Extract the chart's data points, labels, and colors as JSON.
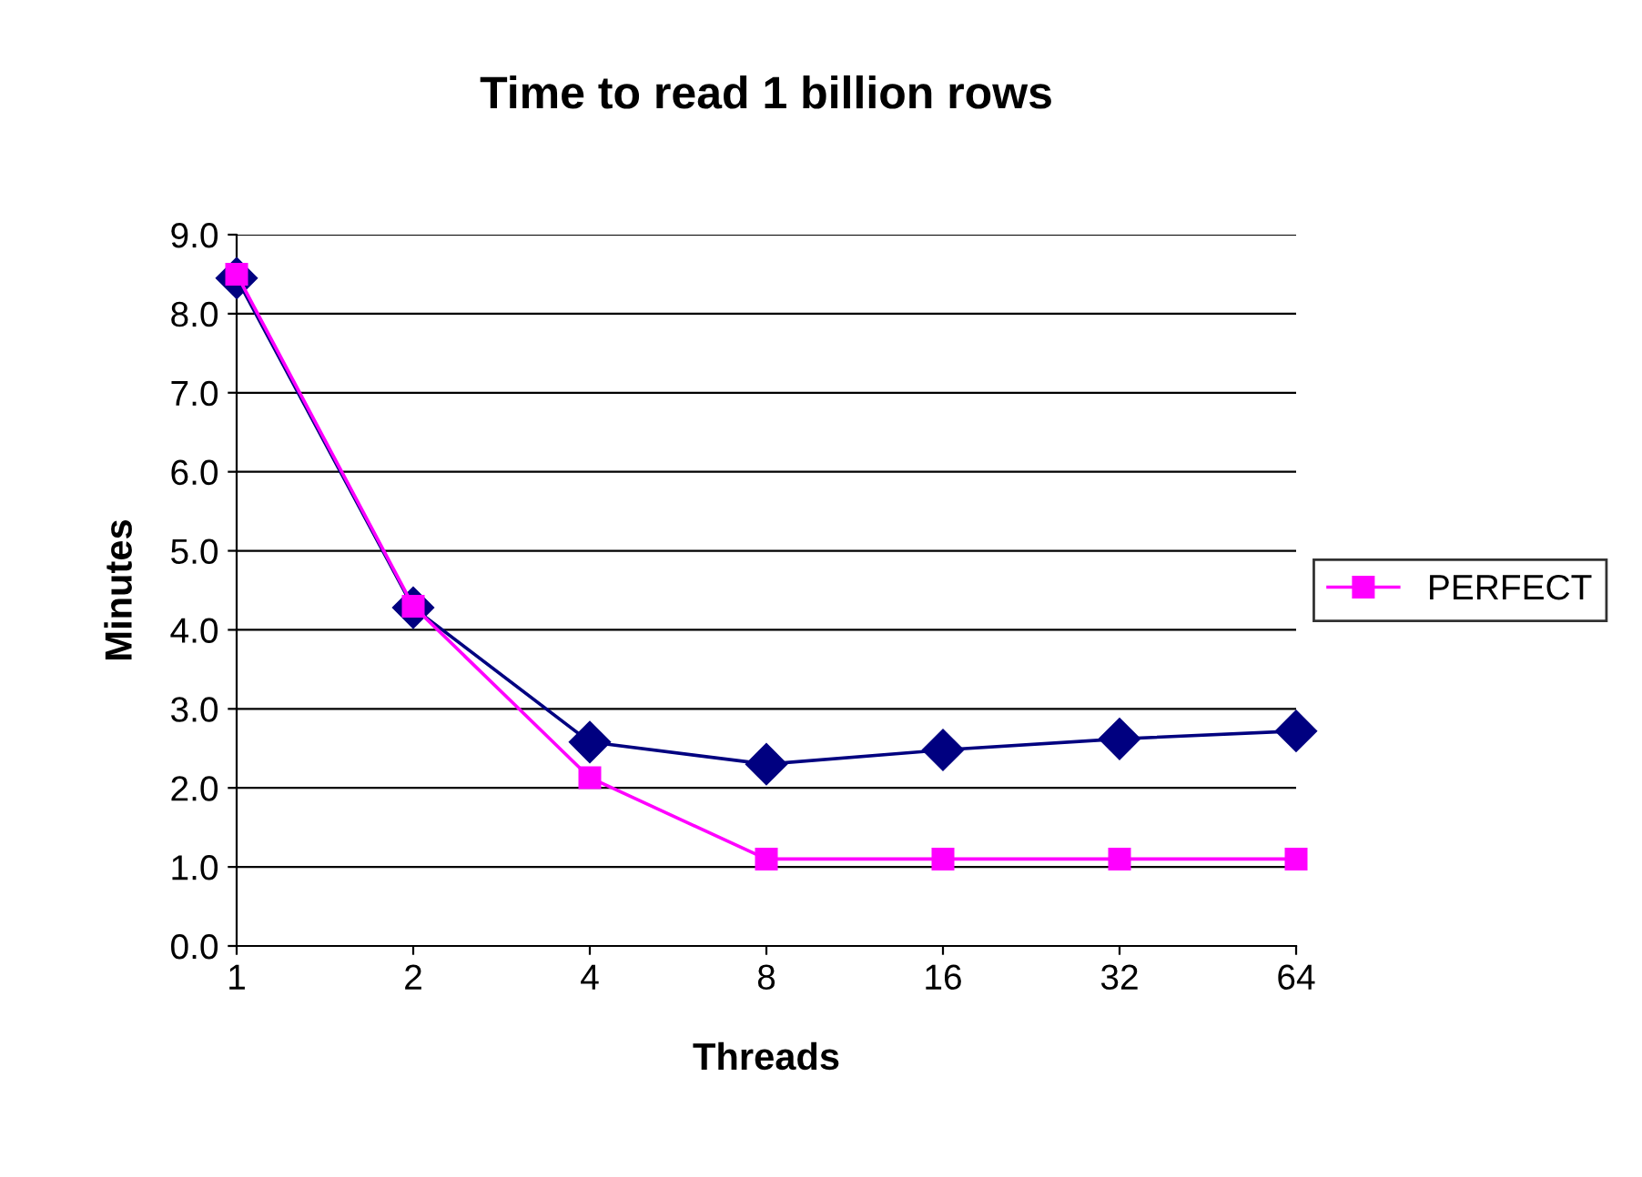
{
  "chart_data": {
    "type": "line",
    "title": "Time to read 1 billion rows",
    "xlabel": "Threads",
    "ylabel": "Minutes",
    "categories": [
      "1",
      "2",
      "4",
      "8",
      "16",
      "32",
      "64"
    ],
    "series": [
      {
        "color": "#000080",
        "marker": "diamond",
        "values": [
          8.45,
          4.28,
          2.58,
          2.3,
          2.48,
          2.62,
          2.72
        ]
      },
      {
        "name": "PERFECT",
        "color": "#ff00ff",
        "marker": "square",
        "values": [
          8.5,
          4.3,
          2.13,
          1.1,
          1.1,
          1.1,
          1.1
        ]
      }
    ],
    "ylim": [
      0,
      9
    ],
    "yticks": [
      {
        "value": 0,
        "label": "0.0"
      },
      {
        "value": 1,
        "label": "1.0"
      },
      {
        "value": 2,
        "label": "2.0"
      },
      {
        "value": 3,
        "label": "3.0"
      },
      {
        "value": 4,
        "label": "4.0"
      },
      {
        "value": 5,
        "label": "5.0"
      },
      {
        "value": 6,
        "label": "6.0"
      },
      {
        "value": 7,
        "label": "7.0"
      },
      {
        "value": 8,
        "label": "8.0"
      },
      {
        "value": 9,
        "label": "9.0"
      }
    ],
    "grid": "y",
    "legend": "right",
    "line_style": "solid"
  }
}
